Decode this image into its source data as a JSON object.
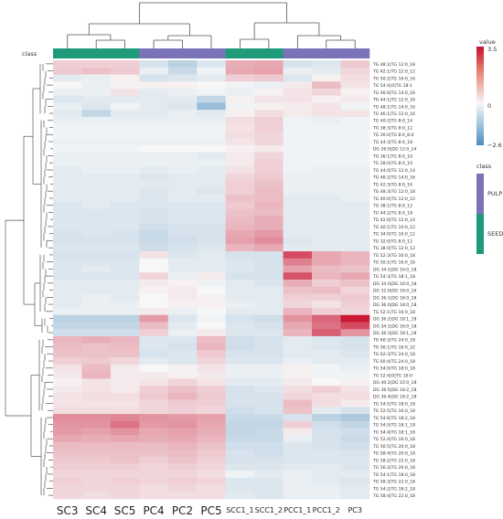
{
  "chart_data": {
    "type": "heatmap",
    "columns": [
      "SC3",
      "SC4",
      "SC5",
      "PC4",
      "PC2",
      "PC5",
      "SCC1_1",
      "SCC1_2",
      "PCC1_1",
      "PCC1_2",
      "PC3"
    ],
    "column_class": [
      "SEED",
      "SEED",
      "SEED",
      "PULP",
      "PULP",
      "PULP",
      "SEED",
      "SEED",
      "PULP",
      "PULP",
      "PULP"
    ],
    "class_label": "class",
    "rows": [
      "TG 48:2|TG 12:0_18",
      "TG 42:1|TG 12:0_12",
      "TG 50:2|TG 16:0_16",
      "TG 54:4|O|TG 18:1",
      "TG 46:0|TG 14:0_16",
      "TG 44:1|TG 12:0_16",
      "TG 48:1|TG 14:0_16",
      "TG 46:1|TG 12:0_16",
      "TG 40:2|TG 8:0_14",
      "TG 38:3|TG 8:0_12",
      "TG 26:0|TG 8:0_8:0",
      "TG 44:3|TG 8:0_18",
      "DG 26:0|DG 12:0_14",
      "TG 36:1|TG 8:0_10",
      "TG 28:0|TG 8:0_10",
      "TG 44:0|TG 12:0_14",
      "TG 46:2|TG 14:0_16",
      "TG 42:3|TG 8:0_16",
      "TG 48:3|TG 12:0_18",
      "TG 40:0|TG 12:0_12",
      "TG 38:1|TG 8:0_12",
      "TG 44:2|TG 8:0_18",
      "TG 42:0|TG 12:0_14",
      "TG 40:1|TG 10:0_12",
      "TG 34:0|TG 10:0_12",
      "TG 32:0|TG 8:0_12",
      "TG 38:0|TG 12:0_12",
      "TG 52:3|TG 16:0_18",
      "TG 50:1|TG 16:0_16",
      "DG 34:1|DG 16:0_18",
      "TG 54:3|TG 18:1_18",
      "DG 34:0|DG 16:0_18",
      "DG 32:0|DG 16:0_16",
      "DG 36:1|DG 18:0_18",
      "DG 36:0|DG 18:0_18",
      "TG 52:1|TG 16:0_18",
      "DG 36:2|DG 18:1_18",
      "DG 34:1|DG 16:0_18",
      "DG 36:3|DG 18:1_18",
      "TG 60:3|TG 24:0_18",
      "TG 56:1|TG 16:0_22",
      "TG 62:3|TG 24:0_18",
      "TG 60:4|TG 24:0_18",
      "TG 54:0|TG 18:0_18",
      "TG 52:4|O|TG 16:0",
      "DG 40:2|DG 22:0_18",
      "DG 36:5|DG 18:2_18",
      "DG 36:4|DG 18:2_18",
      "TG 54:5|TG 18:0_18",
      "TG 52:5|TG 16:0_18",
      "TG 54:6|TG 18:2_18",
      "TG 54:5|TG 18:1_18",
      "TG 54:4|TG 18:1_18",
      "TG 52:4|TG 16:0_18",
      "TG 56:5|TG 20:0_18",
      "TG 58:4|TG 20:0_18",
      "TG 58:2|TG 22:0_18",
      "TG 56:2|TG 20:0_18",
      "TG 54:1|TG 18:0_18",
      "TG 58:3|TG 22:0_18",
      "TG 54:2|TG 18:2_18",
      "TG 58:4|TG 22:0_18"
    ],
    "values": [
      [
        0.6,
        0.6,
        0.6,
        -0.5,
        -0.9,
        -0.4,
        1.1,
        1.2,
        -0.5,
        -0.4,
        0.7
      ],
      [
        0.7,
        0.8,
        0.7,
        -0.2,
        -0.7,
        -0.1,
        1.2,
        1.3,
        -0.2,
        -0.3,
        0.5
      ],
      [
        -0.3,
        -0.2,
        0.1,
        -0.5,
        -0.4,
        -0.3,
        0.6,
        0.7,
        -0.4,
        0.1,
        0.4
      ],
      [
        0.0,
        -0.2,
        0.1,
        0.1,
        0.1,
        0.0,
        -0.1,
        -0.2,
        0.2,
        0.9,
        0.3
      ],
      [
        -0.2,
        -0.2,
        0.3,
        -0.3,
        -0.2,
        -0.1,
        -0.2,
        0.1,
        0.3,
        0.5,
        0.1
      ],
      [
        -0.4,
        -0.3,
        -0.3,
        -0.3,
        -0.3,
        -0.8,
        0.1,
        0.3,
        0.3,
        0.1,
        0.2
      ],
      [
        -0.2,
        -0.4,
        -0.1,
        -0.3,
        -0.4,
        -1.4,
        -0.1,
        0.1,
        0.2,
        0.3,
        -0.1
      ],
      [
        -0.3,
        -0.8,
        -0.3,
        -0.3,
        -0.2,
        -0.3,
        0.1,
        0.4,
        0.2,
        0.3,
        0.3
      ],
      [
        -0.2,
        -0.2,
        -0.2,
        -0.2,
        -0.2,
        -0.2,
        0.4,
        0.6,
        -0.1,
        -0.2,
        -0.1
      ],
      [
        -0.1,
        -0.1,
        -0.1,
        -0.1,
        -0.1,
        -0.1,
        0.3,
        0.6,
        -0.1,
        -0.1,
        -0.1
      ],
      [
        -0.1,
        -0.1,
        -0.1,
        -0.1,
        -0.1,
        -0.1,
        0.4,
        0.5,
        -0.1,
        -0.1,
        -0.1
      ],
      [
        -0.2,
        -0.2,
        -0.2,
        -0.2,
        -0.2,
        -0.2,
        0.3,
        0.5,
        -0.1,
        -0.1,
        -0.1
      ],
      [
        -0.1,
        -0.1,
        -0.1,
        0.0,
        0.0,
        0.0,
        0.1,
        0.2,
        -0.1,
        -0.1,
        -0.1
      ],
      [
        -0.2,
        -0.2,
        -0.2,
        -0.2,
        -0.2,
        -0.3,
        0.2,
        0.5,
        -0.1,
        -0.1,
        -0.1
      ],
      [
        -0.2,
        -0.2,
        -0.2,
        -0.2,
        -0.2,
        -0.2,
        0.2,
        0.6,
        -0.1,
        -0.1,
        -0.1
      ],
      [
        -0.3,
        -0.2,
        -0.2,
        -0.3,
        -0.2,
        -0.3,
        0.3,
        0.6,
        -0.1,
        -0.2,
        -0.2
      ],
      [
        -0.3,
        -0.3,
        -0.3,
        -0.4,
        -0.3,
        -0.3,
        0.5,
        0.7,
        -0.2,
        -0.2,
        -0.2
      ],
      [
        -0.3,
        -0.3,
        -0.3,
        -0.3,
        -0.3,
        -0.3,
        0.6,
        0.8,
        -0.2,
        -0.2,
        -0.2
      ],
      [
        -0.3,
        -0.3,
        -0.3,
        -0.4,
        -0.3,
        -0.4,
        0.6,
        0.9,
        -0.2,
        -0.2,
        -0.2
      ],
      [
        -0.3,
        -0.3,
        -0.3,
        -0.4,
        -0.3,
        -0.3,
        0.8,
        0.9,
        -0.3,
        -0.3,
        -0.2
      ],
      [
        -0.4,
        -0.3,
        -0.4,
        -0.4,
        -0.4,
        -0.4,
        0.7,
        1.0,
        -0.3,
        -0.3,
        -0.3
      ],
      [
        -0.4,
        -0.4,
        -0.4,
        -0.5,
        -0.4,
        -0.4,
        0.8,
        0.9,
        -0.3,
        -0.3,
        -0.3
      ],
      [
        -0.4,
        -0.4,
        -0.4,
        -0.5,
        -0.4,
        -0.4,
        0.9,
        1.1,
        -0.3,
        -0.3,
        -0.3
      ],
      [
        -0.4,
        -0.4,
        -0.4,
        -0.6,
        -0.5,
        -0.5,
        1.0,
        1.1,
        -0.3,
        -0.3,
        -0.3
      ],
      [
        -0.5,
        -0.4,
        -0.5,
        -0.7,
        -0.5,
        -0.5,
        1.2,
        1.4,
        -0.3,
        -0.3,
        -0.3
      ],
      [
        -0.5,
        -0.5,
        -0.5,
        -0.7,
        -0.6,
        -0.5,
        1.3,
        1.6,
        -0.4,
        -0.3,
        -0.3
      ],
      [
        -0.4,
        -0.4,
        -0.4,
        -0.6,
        -0.5,
        -0.4,
        1.0,
        1.2,
        -0.3,
        -0.3,
        -0.3
      ],
      [
        -0.5,
        -0.5,
        -0.5,
        0.3,
        -0.4,
        -0.3,
        -0.5,
        -0.5,
        2.6,
        1.2,
        1.0
      ],
      [
        -0.4,
        -0.4,
        -0.4,
        0.0,
        -0.3,
        -0.3,
        -0.4,
        -0.5,
        1.8,
        1.2,
        1.0
      ],
      [
        -0.4,
        -0.3,
        -0.4,
        0.0,
        -0.3,
        -0.3,
        -0.4,
        -0.5,
        1.3,
        0.9,
        0.8
      ],
      [
        -0.4,
        -0.4,
        -0.4,
        0.5,
        -0.2,
        0.2,
        -0.5,
        -0.5,
        2.5,
        1.0,
        1.2
      ],
      [
        -0.3,
        -0.3,
        -0.3,
        0.2,
        0.1,
        -0.1,
        -0.3,
        -0.4,
        1.1,
        0.6,
        0.8
      ],
      [
        -0.3,
        -0.3,
        -0.3,
        0.1,
        0.2,
        0.0,
        -0.3,
        -0.3,
        0.8,
        0.9,
        0.5
      ],
      [
        -0.3,
        -0.2,
        -0.3,
        0.0,
        0.2,
        0.1,
        -0.3,
        -0.3,
        0.6,
        0.6,
        0.7
      ],
      [
        -0.3,
        -0.2,
        -0.2,
        0.0,
        0.1,
        0.1,
        -0.2,
        -0.3,
        0.5,
        0.3,
        0.6
      ],
      [
        -0.2,
        -0.2,
        -0.2,
        0.2,
        -0.2,
        0.0,
        -0.3,
        -0.3,
        1.0,
        0.6,
        0.5
      ],
      [
        -0.9,
        -0.9,
        -0.9,
        1.4,
        -0.4,
        -0.1,
        -0.5,
        -0.6,
        1.5,
        2.2,
        3.4
      ],
      [
        -0.8,
        -0.8,
        -0.8,
        0.9,
        -0.3,
        0.0,
        -0.4,
        -0.5,
        1.2,
        2.0,
        2.6
      ],
      [
        -0.6,
        -0.6,
        -0.6,
        0.6,
        -0.2,
        0.2,
        -0.4,
        -0.4,
        1.0,
        2.3,
        1.5
      ],
      [
        1.0,
        1.1,
        1.0,
        -0.4,
        -0.4,
        0.9,
        -0.6,
        -0.5,
        -0.3,
        -0.4,
        -0.5
      ],
      [
        0.9,
        0.8,
        0.9,
        -0.4,
        -0.5,
        1.0,
        -0.6,
        -0.5,
        -0.3,
        -0.4,
        -0.5
      ],
      [
        0.8,
        0.8,
        0.8,
        -0.5,
        -0.4,
        0.7,
        -0.5,
        -0.5,
        -0.3,
        -0.3,
        -0.4
      ],
      [
        0.6,
        0.7,
        0.5,
        -0.3,
        -0.4,
        0.5,
        -0.4,
        -0.4,
        -0.2,
        -0.3,
        -0.3
      ],
      [
        0.3,
        0.9,
        0.2,
        0.0,
        0.1,
        0.3,
        -0.2,
        -0.2,
        0.1,
        -0.1,
        -0.2
      ],
      [
        0.2,
        1.0,
        0.2,
        0.2,
        0.1,
        0.2,
        -0.2,
        -0.2,
        0.1,
        -0.1,
        -0.1
      ],
      [
        0.1,
        0.3,
        0.2,
        0.3,
        0.5,
        0.3,
        -0.3,
        -0.3,
        0.2,
        0.0,
        0.1
      ],
      [
        0.2,
        0.3,
        0.2,
        0.6,
        0.8,
        0.6,
        -0.5,
        -0.4,
        0.4,
        0.6,
        0.3
      ],
      [
        0.3,
        0.4,
        0.4,
        0.7,
        1.0,
        0.7,
        -0.5,
        -0.5,
        0.5,
        0.4,
        0.4
      ],
      [
        0.3,
        0.3,
        0.3,
        0.5,
        0.7,
        0.6,
        -0.5,
        -0.5,
        0.9,
        0.4,
        0.2
      ],
      [
        0.4,
        0.4,
        0.4,
        0.5,
        0.6,
        0.5,
        -0.6,
        -0.5,
        0.8,
        -0.3,
        -0.5
      ],
      [
        1.6,
        1.6,
        1.7,
        1.5,
        1.4,
        1.3,
        -0.7,
        -0.7,
        -0.5,
        -0.9,
        -1.1
      ],
      [
        1.5,
        1.5,
        2.0,
        1.4,
        1.5,
        1.2,
        -0.8,
        -0.8,
        0.6,
        -0.6,
        -0.8
      ],
      [
        1.4,
        1.3,
        1.5,
        1.2,
        1.3,
        1.1,
        -0.8,
        -0.7,
        0.2,
        -0.5,
        -0.6
      ],
      [
        1.2,
        1.1,
        1.2,
        1.1,
        1.2,
        1.0,
        -0.7,
        -0.7,
        -0.2,
        -0.5,
        -0.7
      ],
      [
        0.9,
        0.9,
        0.9,
        0.9,
        1.0,
        0.8,
        -0.6,
        -0.6,
        -0.4,
        -0.5,
        -0.6
      ],
      [
        0.8,
        0.8,
        0.8,
        0.8,
        0.9,
        0.7,
        -0.5,
        -0.6,
        -0.4,
        -0.4,
        -0.5
      ],
      [
        0.7,
        0.7,
        0.8,
        0.6,
        0.8,
        0.6,
        -0.5,
        -0.5,
        -0.4,
        -0.4,
        -0.4
      ],
      [
        0.6,
        0.6,
        0.6,
        0.5,
        0.6,
        0.5,
        -0.4,
        -0.4,
        -0.3,
        -0.3,
        -0.4
      ],
      [
        0.5,
        0.5,
        0.5,
        0.5,
        0.5,
        0.4,
        -0.1,
        -0.3,
        -0.2,
        -0.3,
        -0.3
      ],
      [
        0.6,
        0.5,
        0.6,
        0.5,
        0.6,
        0.5,
        -0.4,
        -0.4,
        -0.2,
        -0.3,
        -0.4
      ],
      [
        0.5,
        0.5,
        0.5,
        0.4,
        0.5,
        0.4,
        -0.4,
        -0.4,
        -0.2,
        -0.2,
        -0.3
      ],
      [
        0.5,
        0.4,
        0.5,
        0.4,
        0.4,
        0.4,
        -0.3,
        -0.4,
        -0.2,
        -0.2,
        -0.3
      ]
    ],
    "colorbar": {
      "title": "value",
      "max_label": "3.5",
      "mid_label": "0",
      "min_label": "−2.6",
      "min": -2.6,
      "max": 3.5
    },
    "class_legend": {
      "title": "class",
      "items": [
        {
          "name": "PULP",
          "color": "#7b73b8"
        },
        {
          "name": "SEED",
          "color": "#1f9a7a"
        }
      ]
    },
    "colors": {
      "neg": "#4a8bbd",
      "mid": "#f7f7f7",
      "pos": "#c8102e"
    }
  }
}
